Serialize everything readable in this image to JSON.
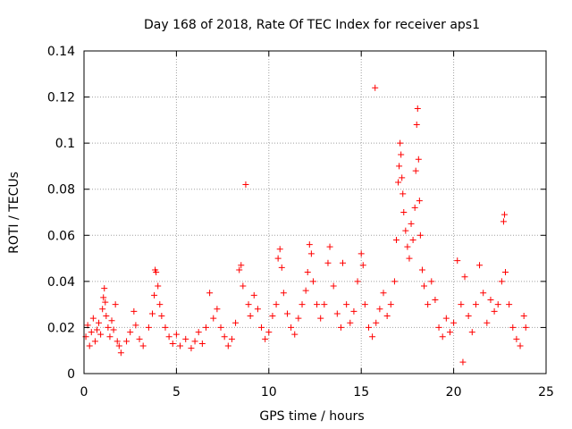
{
  "chart_data": {
    "type": "scatter",
    "title": "Day 168 of 2018, Rate Of TEC Index for receiver aps1",
    "xlabel": "GPS time / hours",
    "ylabel": "ROTI / TECUs",
    "xlim": [
      0,
      25
    ],
    "ylim": [
      0,
      0.14
    ],
    "x_ticks": [
      0,
      5,
      10,
      15,
      20,
      25
    ],
    "x_tick_labels": [
      "0",
      "5",
      "10",
      "15",
      "20",
      "25"
    ],
    "y_ticks": [
      0,
      0.02,
      0.04,
      0.06,
      0.08,
      0.1,
      0.12,
      0.14
    ],
    "y_tick_labels": [
      "0",
      "0.02",
      "0.04",
      "0.06",
      "0.08",
      "0.1",
      "0.12",
      "0.14"
    ],
    "grid": true,
    "marker": "plus",
    "color": "#ff0000",
    "series": [
      {
        "name": "ROTI",
        "points": [
          [
            0.1,
            0.016
          ],
          [
            0.2,
            0.021
          ],
          [
            0.3,
            0.012
          ],
          [
            0.4,
            0.018
          ],
          [
            0.5,
            0.024
          ],
          [
            0.6,
            0.014
          ],
          [
            0.7,
            0.019
          ],
          [
            0.8,
            0.022
          ],
          [
            0.9,
            0.017
          ],
          [
            1.0,
            0.028
          ],
          [
            1.05,
            0.033
          ],
          [
            1.1,
            0.037
          ],
          [
            1.15,
            0.031
          ],
          [
            1.2,
            0.025
          ],
          [
            1.3,
            0.02
          ],
          [
            1.4,
            0.016
          ],
          [
            1.5,
            0.023
          ],
          [
            1.6,
            0.019
          ],
          [
            1.7,
            0.03
          ],
          [
            1.8,
            0.014
          ],
          [
            1.9,
            0.012
          ],
          [
            2.0,
            0.009
          ],
          [
            2.3,
            0.014
          ],
          [
            2.5,
            0.018
          ],
          [
            2.7,
            0.027
          ],
          [
            2.8,
            0.021
          ],
          [
            3.0,
            0.015
          ],
          [
            3.2,
            0.012
          ],
          [
            3.5,
            0.02
          ],
          [
            3.7,
            0.026
          ],
          [
            3.8,
            0.034
          ],
          [
            3.85,
            0.045
          ],
          [
            3.9,
            0.044
          ],
          [
            4.0,
            0.038
          ],
          [
            4.1,
            0.03
          ],
          [
            4.2,
            0.025
          ],
          [
            4.4,
            0.02
          ],
          [
            4.6,
            0.016
          ],
          [
            4.8,
            0.013
          ],
          [
            5.0,
            0.017
          ],
          [
            5.2,
            0.012
          ],
          [
            5.5,
            0.015
          ],
          [
            5.8,
            0.011
          ],
          [
            6.0,
            0.014
          ],
          [
            6.2,
            0.018
          ],
          [
            6.4,
            0.013
          ],
          [
            6.6,
            0.02
          ],
          [
            6.8,
            0.035
          ],
          [
            7.0,
            0.024
          ],
          [
            7.2,
            0.028
          ],
          [
            7.4,
            0.02
          ],
          [
            7.6,
            0.016
          ],
          [
            7.8,
            0.012
          ],
          [
            8.0,
            0.015
          ],
          [
            8.2,
            0.022
          ],
          [
            8.4,
            0.045
          ],
          [
            8.5,
            0.047
          ],
          [
            8.6,
            0.038
          ],
          [
            8.75,
            0.082
          ],
          [
            8.9,
            0.03
          ],
          [
            9.0,
            0.025
          ],
          [
            9.2,
            0.034
          ],
          [
            9.4,
            0.028
          ],
          [
            9.6,
            0.02
          ],
          [
            9.8,
            0.015
          ],
          [
            10.0,
            0.018
          ],
          [
            10.2,
            0.025
          ],
          [
            10.4,
            0.03
          ],
          [
            10.5,
            0.05
          ],
          [
            10.6,
            0.054
          ],
          [
            10.7,
            0.046
          ],
          [
            10.8,
            0.035
          ],
          [
            11.0,
            0.026
          ],
          [
            11.2,
            0.02
          ],
          [
            11.4,
            0.017
          ],
          [
            11.6,
            0.024
          ],
          [
            11.8,
            0.03
          ],
          [
            12.0,
            0.036
          ],
          [
            12.1,
            0.044
          ],
          [
            12.2,
            0.056
          ],
          [
            12.3,
            0.052
          ],
          [
            12.4,
            0.04
          ],
          [
            12.6,
            0.03
          ],
          [
            12.8,
            0.024
          ],
          [
            13.0,
            0.03
          ],
          [
            13.2,
            0.048
          ],
          [
            13.3,
            0.055
          ],
          [
            13.5,
            0.038
          ],
          [
            13.7,
            0.026
          ],
          [
            13.9,
            0.02
          ],
          [
            14.0,
            0.048
          ],
          [
            14.2,
            0.03
          ],
          [
            14.4,
            0.022
          ],
          [
            14.6,
            0.027
          ],
          [
            14.8,
            0.04
          ],
          [
            15.0,
            0.052
          ],
          [
            15.1,
            0.047
          ],
          [
            15.2,
            0.03
          ],
          [
            15.4,
            0.02
          ],
          [
            15.6,
            0.016
          ],
          [
            15.75,
            0.124
          ],
          [
            15.8,
            0.022
          ],
          [
            16.0,
            0.028
          ],
          [
            16.2,
            0.035
          ],
          [
            16.4,
            0.025
          ],
          [
            16.6,
            0.03
          ],
          [
            16.8,
            0.04
          ],
          [
            16.9,
            0.058
          ],
          [
            17.0,
            0.083
          ],
          [
            17.05,
            0.09
          ],
          [
            17.1,
            0.1
          ],
          [
            17.15,
            0.095
          ],
          [
            17.2,
            0.085
          ],
          [
            17.25,
            0.078
          ],
          [
            17.3,
            0.07
          ],
          [
            17.4,
            0.062
          ],
          [
            17.5,
            0.055
          ],
          [
            17.6,
            0.05
          ],
          [
            17.7,
            0.065
          ],
          [
            17.8,
            0.058
          ],
          [
            17.9,
            0.072
          ],
          [
            17.95,
            0.088
          ],
          [
            18.0,
            0.108
          ],
          [
            18.05,
            0.115
          ],
          [
            18.1,
            0.093
          ],
          [
            18.15,
            0.075
          ],
          [
            18.2,
            0.06
          ],
          [
            18.3,
            0.045
          ],
          [
            18.4,
            0.038
          ],
          [
            18.6,
            0.03
          ],
          [
            18.8,
            0.04
          ],
          [
            19.0,
            0.032
          ],
          [
            19.2,
            0.02
          ],
          [
            19.4,
            0.016
          ],
          [
            19.6,
            0.024
          ],
          [
            19.8,
            0.018
          ],
          [
            20.0,
            0.022
          ],
          [
            20.2,
            0.049
          ],
          [
            20.4,
            0.03
          ],
          [
            20.5,
            0.005
          ],
          [
            20.6,
            0.042
          ],
          [
            20.8,
            0.025
          ],
          [
            21.0,
            0.018
          ],
          [
            21.2,
            0.03
          ],
          [
            21.4,
            0.047
          ],
          [
            21.6,
            0.035
          ],
          [
            21.8,
            0.022
          ],
          [
            22.0,
            0.032
          ],
          [
            22.2,
            0.027
          ],
          [
            22.4,
            0.03
          ],
          [
            22.6,
            0.04
          ],
          [
            22.7,
            0.066
          ],
          [
            22.75,
            0.069
          ],
          [
            22.8,
            0.044
          ],
          [
            23.0,
            0.03
          ],
          [
            23.2,
            0.02
          ],
          [
            23.4,
            0.015
          ],
          [
            23.6,
            0.012
          ],
          [
            23.8,
            0.025
          ],
          [
            23.9,
            0.02
          ]
        ]
      }
    ]
  }
}
